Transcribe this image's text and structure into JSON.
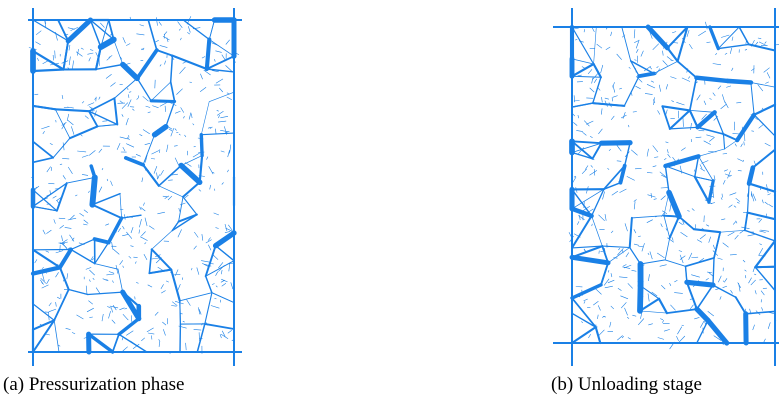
{
  "panels": [
    {
      "caption": "(a) Pressurization phase"
    },
    {
      "caption": "(b) Unloading stage"
    }
  ]
}
